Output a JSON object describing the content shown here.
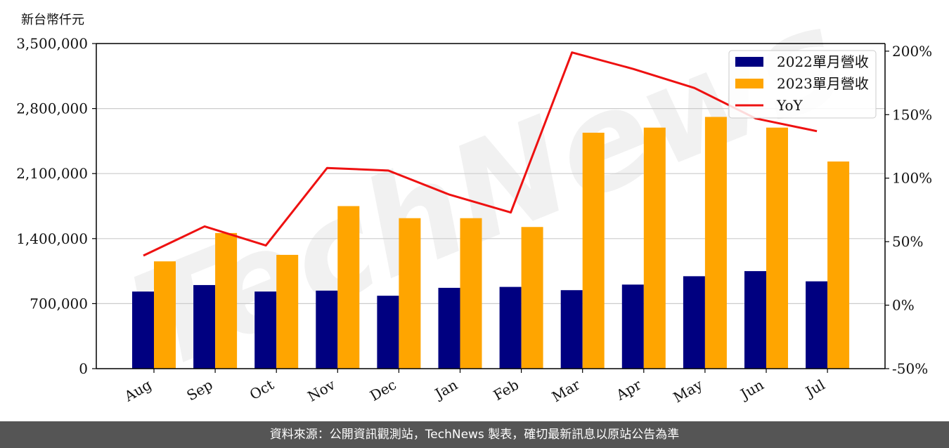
{
  "chart_data": {
    "type": "bar",
    "y_unit_label": "新台幣仟元",
    "categories": [
      "Aug",
      "Sep",
      "Oct",
      "Nov",
      "Dec",
      "Jan",
      "Feb",
      "Mar",
      "Apr",
      "May",
      "Jun",
      "Jul"
    ],
    "series": [
      {
        "name": "2022單月營收",
        "type": "bar",
        "color": "#000080",
        "values": [
          830000,
          900000,
          830000,
          840000,
          785000,
          870000,
          880000,
          845000,
          905000,
          995000,
          1050000,
          940000
        ]
      },
      {
        "name": "2023單月營收",
        "type": "bar",
        "color": "#FFA500",
        "values": [
          1155000,
          1460000,
          1225000,
          1750000,
          1620000,
          1620000,
          1525000,
          2540000,
          2595000,
          2710000,
          2595000,
          2230000
        ]
      },
      {
        "name": "YoY",
        "type": "line",
        "axis": "right",
        "color": "#EE1111",
        "values": [
          39,
          62,
          47,
          108,
          106,
          87,
          73,
          199,
          186,
          171,
          147,
          137
        ]
      }
    ],
    "y_left": {
      "min": 0,
      "max": 3500000,
      "ticks": [
        0,
        700000,
        1400000,
        2100000,
        2800000,
        3500000
      ],
      "tick_labels": [
        "0",
        "700,000",
        "1,400,000",
        "2,100,000",
        "2,800,000",
        "3,500,000"
      ]
    },
    "y_right": {
      "min": -50,
      "max": 206,
      "ticks": [
        -50,
        0,
        50,
        100,
        150,
        200
      ],
      "tick_labels": [
        "-50%",
        "0%",
        "50%",
        "100%",
        "150%",
        "200%"
      ]
    },
    "grid": true,
    "legend_position": "top-right",
    "watermark": "TechNews"
  },
  "footer": {
    "source_text": "資料來源：公開資訊觀測站，TechNews 製表，確切最新訊息以原站公告為準"
  },
  "colors": {
    "bar_2022": "#000080",
    "bar_2023": "#FFA500",
    "yoy_line": "#EE1111",
    "footer_bg": "#555555",
    "grid": "#cccccc",
    "watermark": "#e6e6e6"
  }
}
